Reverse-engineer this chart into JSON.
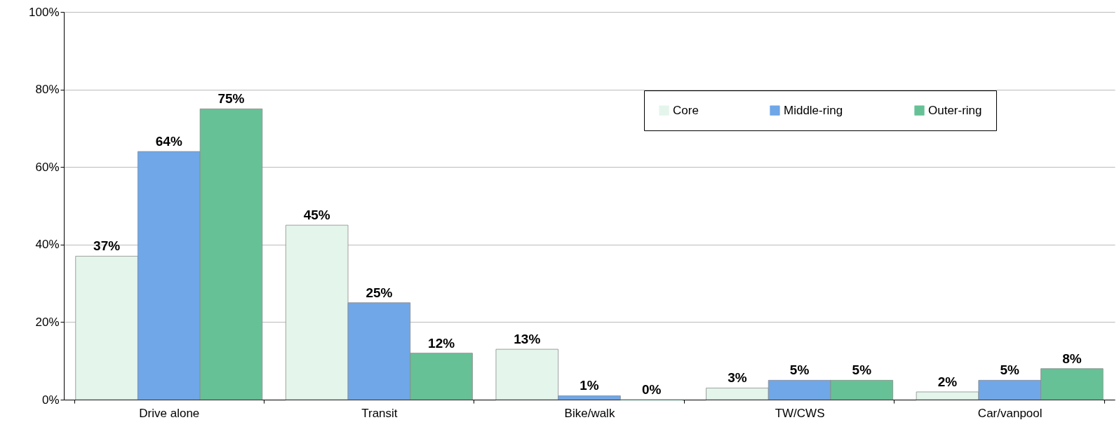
{
  "chart_data": {
    "type": "bar",
    "categories": [
      "Drive alone",
      "Transit",
      "Bike/walk",
      "TW/CWS",
      "Car/vanpool"
    ],
    "series": [
      {
        "name": "Core",
        "color": "#e4f5ec",
        "values": [
          37,
          45,
          13,
          3,
          2
        ],
        "value_labels": [
          "37%",
          "45%",
          "13%",
          "3%",
          "2%"
        ]
      },
      {
        "name": "Middle-ring",
        "color": "#6fa7e8",
        "values": [
          64,
          25,
          1,
          5,
          5
        ],
        "value_labels": [
          "64%",
          "25%",
          "1%",
          "5%",
          "5%"
        ]
      },
      {
        "name": "Outer-ring",
        "color": "#66c196",
        "values": [
          75,
          12,
          0,
          5,
          8
        ],
        "value_labels": [
          "75%",
          "12%",
          "0%",
          "5%",
          "8%"
        ]
      }
    ],
    "ylim": [
      0,
      100
    ],
    "yticks": [
      {
        "value": 0,
        "label": "0%"
      },
      {
        "value": 20,
        "label": "20%"
      },
      {
        "value": 40,
        "label": "40%"
      },
      {
        "value": 60,
        "label": "60%"
      },
      {
        "value": 80,
        "label": "80%"
      },
      {
        "value": 100,
        "label": "100%"
      }
    ],
    "grid": "y",
    "legend": "top right"
  }
}
